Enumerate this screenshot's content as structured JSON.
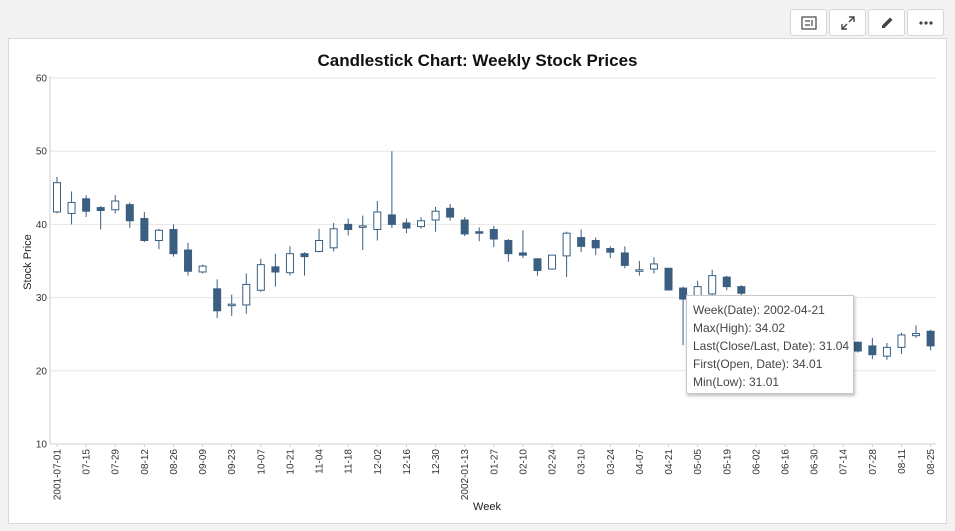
{
  "toolbar": {
    "buttons": [
      {
        "name": "summary-icon"
      },
      {
        "name": "expand-icon"
      },
      {
        "name": "edit-icon"
      },
      {
        "name": "more-icon"
      }
    ]
  },
  "colors": {
    "bear": "#3a5f80",
    "bull_fill": "#ffffff",
    "bull_stroke": "#3a5f80",
    "grid": "#e6e6e6"
  },
  "tooltip": {
    "lines": [
      "Week(Date): 2002-04-21",
      "Max(High): 34.02",
      "Last(Close/Last, Date): 31.04",
      "First(Open, Date): 34.01",
      "Min(Low): 31.01"
    ]
  },
  "chart_data": {
    "type": "candlestick",
    "title": "Candlestick Chart: Weekly Stock Prices",
    "xlabel": "Week",
    "ylabel": "Stock Price",
    "ylim": [
      10,
      60
    ],
    "yticks": [
      10,
      20,
      30,
      40,
      50,
      60
    ],
    "grid": true,
    "x_tick_labels": [
      "2001-07-01",
      "07-15",
      "07-29",
      "08-12",
      "08-26",
      "09-09",
      "09-23",
      "10-07",
      "10-21",
      "11-04",
      "11-18",
      "12-02",
      "12-16",
      "12-30",
      "2002-01-13",
      "01-27",
      "02-10",
      "02-24",
      "03-10",
      "03-24",
      "04-07",
      "04-21",
      "05-05",
      "05-19",
      "06-02",
      "06-16",
      "06-30",
      "07-14",
      "07-28",
      "08-11",
      "08-25"
    ],
    "series": [
      {
        "week": "2001-07-01",
        "open": 41.7,
        "close": 45.7,
        "high": 46.5,
        "low": 41.5
      },
      {
        "week": "2001-07-08",
        "open": 41.5,
        "close": 43.0,
        "high": 44.5,
        "low": 40.0
      },
      {
        "week": "2001-07-15",
        "open": 43.5,
        "close": 41.8,
        "high": 44.0,
        "low": 41.0
      },
      {
        "week": "2001-07-22",
        "open": 42.3,
        "close": 41.9,
        "high": 42.5,
        "low": 39.3
      },
      {
        "week": "2001-07-29",
        "open": 42.0,
        "close": 43.2,
        "high": 44.0,
        "low": 41.5
      },
      {
        "week": "2001-08-05",
        "open": 42.7,
        "close": 40.5,
        "high": 43.0,
        "low": 39.5
      },
      {
        "week": "2001-08-12",
        "open": 40.8,
        "close": 37.8,
        "high": 41.7,
        "low": 37.6
      },
      {
        "week": "2001-08-19",
        "open": 37.8,
        "close": 39.2,
        "high": 39.4,
        "low": 36.6
      },
      {
        "week": "2001-08-26",
        "open": 39.3,
        "close": 36.0,
        "high": 40.0,
        "low": 35.6
      },
      {
        "week": "2001-09-02",
        "open": 36.5,
        "close": 33.6,
        "high": 37.5,
        "low": 33.0
      },
      {
        "week": "2001-09-09",
        "open": 33.5,
        "close": 34.3,
        "high": 34.5,
        "low": 33.3
      },
      {
        "week": "2001-09-16",
        "open": 31.2,
        "close": 28.2,
        "high": 32.5,
        "low": 27.2
      },
      {
        "week": "2001-09-23",
        "open": 28.9,
        "close": 29.1,
        "high": 30.4,
        "low": 27.5
      },
      {
        "week": "2001-09-30",
        "open": 29.0,
        "close": 31.8,
        "high": 33.3,
        "low": 27.8
      },
      {
        "week": "2001-10-07",
        "open": 31.0,
        "close": 34.5,
        "high": 35.3,
        "low": 30.8
      },
      {
        "week": "2001-10-14",
        "open": 34.2,
        "close": 33.5,
        "high": 36.0,
        "low": 31.5
      },
      {
        "week": "2001-10-21",
        "open": 33.4,
        "close": 36.0,
        "high": 37.0,
        "low": 33.0
      },
      {
        "week": "2001-10-28",
        "open": 36.0,
        "close": 35.6,
        "high": 36.2,
        "low": 33.0
      },
      {
        "week": "2001-11-04",
        "open": 36.3,
        "close": 37.8,
        "high": 39.4,
        "low": 36.2
      },
      {
        "week": "2001-11-11",
        "open": 36.8,
        "close": 39.4,
        "high": 40.2,
        "low": 36.3
      },
      {
        "week": "2001-11-18",
        "open": 40.0,
        "close": 39.3,
        "high": 40.8,
        "low": 38.5
      },
      {
        "week": "2001-11-25",
        "open": 39.6,
        "close": 39.8,
        "high": 41.2,
        "low": 36.5
      },
      {
        "week": "2001-12-02",
        "open": 39.3,
        "close": 41.7,
        "high": 43.2,
        "low": 37.8
      },
      {
        "week": "2001-12-09",
        "open": 41.3,
        "close": 40.0,
        "high": 50.0,
        "low": 39.5
      },
      {
        "week": "2001-12-16",
        "open": 40.2,
        "close": 39.5,
        "high": 40.8,
        "low": 38.8
      },
      {
        "week": "2001-12-23",
        "open": 39.7,
        "close": 40.5,
        "high": 41.0,
        "low": 39.4
      },
      {
        "week": "2001-12-30",
        "open": 40.6,
        "close": 41.8,
        "high": 42.4,
        "low": 39.0
      },
      {
        "week": "2002-01-06",
        "open": 42.2,
        "close": 41.0,
        "high": 42.8,
        "low": 40.5
      },
      {
        "week": "2002-01-13",
        "open": 40.6,
        "close": 38.7,
        "high": 41.0,
        "low": 38.4
      },
      {
        "week": "2002-01-20",
        "open": 39.0,
        "close": 38.8,
        "high": 39.6,
        "low": 37.7
      },
      {
        "week": "2002-01-27",
        "open": 39.3,
        "close": 38.0,
        "high": 39.8,
        "low": 36.9
      },
      {
        "week": "2002-02-03",
        "open": 37.8,
        "close": 36.0,
        "high": 38.0,
        "low": 34.9
      },
      {
        "week": "2002-02-10",
        "open": 36.1,
        "close": 35.8,
        "high": 39.2,
        "low": 35.4
      },
      {
        "week": "2002-02-17",
        "open": 35.3,
        "close": 33.7,
        "high": 35.4,
        "low": 33.0
      },
      {
        "week": "2002-02-24",
        "open": 33.9,
        "close": 35.8,
        "high": 35.8,
        "low": 33.8
      },
      {
        "week": "2002-03-03",
        "open": 35.7,
        "close": 38.8,
        "high": 39.0,
        "low": 32.8
      },
      {
        "week": "2002-03-10",
        "open": 38.2,
        "close": 37.0,
        "high": 39.3,
        "low": 36.2
      },
      {
        "week": "2002-03-17",
        "open": 37.8,
        "close": 36.8,
        "high": 38.2,
        "low": 35.8
      },
      {
        "week": "2002-03-24",
        "open": 36.7,
        "close": 36.2,
        "high": 37.0,
        "low": 35.4
      },
      {
        "week": "2002-03-31",
        "open": 36.1,
        "close": 34.4,
        "high": 37.0,
        "low": 34.0
      },
      {
        "week": "2002-04-07",
        "open": 33.8,
        "close": 33.8,
        "high": 35.0,
        "low": 33.0
      },
      {
        "week": "2002-04-14",
        "open": 33.9,
        "close": 34.6,
        "high": 35.5,
        "low": 33.3
      },
      {
        "week": "2002-04-21",
        "open": 34.01,
        "close": 31.04,
        "high": 34.02,
        "low": 31.01
      },
      {
        "week": "2002-04-28",
        "open": 31.3,
        "close": 29.8,
        "high": 31.5,
        "low": 23.5
      },
      {
        "week": "2002-05-05",
        "open": 29.8,
        "close": 31.5,
        "high": 32.3,
        "low": 28.0
      },
      {
        "week": "2002-05-12",
        "open": 30.5,
        "close": 33.0,
        "high": 33.8,
        "low": 30.0
      },
      {
        "week": "2002-05-19",
        "open": 32.8,
        "close": 31.5,
        "high": 33.0,
        "low": 31.0
      },
      {
        "week": "2002-05-26",
        "open": 31.5,
        "close": 30.6,
        "high": 31.7,
        "low": 30.3
      },
      {
        "week": "2002-07-21",
        "open": 23.9,
        "close": 22.7,
        "high": 24.0,
        "low": 22.5
      },
      {
        "week": "2002-07-28",
        "open": 23.4,
        "close": 22.2,
        "high": 24.5,
        "low": 21.6
      },
      {
        "week": "2002-08-04",
        "open": 22.0,
        "close": 23.2,
        "high": 23.8,
        "low": 21.5
      },
      {
        "week": "2002-08-11",
        "open": 23.2,
        "close": 24.9,
        "high": 25.2,
        "low": 22.3
      },
      {
        "week": "2002-08-18",
        "open": 24.8,
        "close": 25.1,
        "high": 26.2,
        "low": 24.5
      },
      {
        "week": "2002-08-25",
        "open": 25.4,
        "close": 23.4,
        "high": 25.6,
        "low": 22.8
      }
    ]
  }
}
